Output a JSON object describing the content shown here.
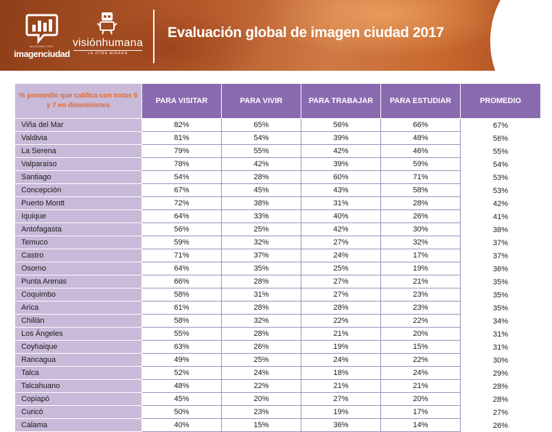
{
  "header": {
    "logo_left_small": "BAROMETRO",
    "logo_left_big": "imagenciudad",
    "logo_right_big": "visiónhumana",
    "logo_right_small": "LA OTRA MIRADA",
    "title": "Evaluación global de imagen ciudad 2017"
  },
  "table": {
    "corner_label": "% promedio que califica con notas 6 y 7 en dimensiones",
    "columns": [
      "PARA VISITAR",
      "PARA VIVIR",
      "PARA TRABAJAR",
      "PARA ESTUDIAR",
      "PROMEDIO"
    ],
    "rows": [
      {
        "city": "Viña del Mar",
        "visitar": "82%",
        "vivir": "65%",
        "trabajar": "56%",
        "estudiar": "66%",
        "promedio": "67%"
      },
      {
        "city": "Valdivia",
        "visitar": "81%",
        "vivir": "54%",
        "trabajar": "39%",
        "estudiar": "48%",
        "promedio": "56%"
      },
      {
        "city": "La Serena",
        "visitar": "79%",
        "vivir": "55%",
        "trabajar": "42%",
        "estudiar": "46%",
        "promedio": "55%"
      },
      {
        "city": "Valparaíso",
        "visitar": "78%",
        "vivir": "42%",
        "trabajar": "39%",
        "estudiar": "59%",
        "promedio": "54%"
      },
      {
        "city": "Santiago",
        "visitar": "54%",
        "vivir": "28%",
        "trabajar": "60%",
        "estudiar": "71%",
        "promedio": "53%"
      },
      {
        "city": "Concepción",
        "visitar": "67%",
        "vivir": "45%",
        "trabajar": "43%",
        "estudiar": "58%",
        "promedio": "53%"
      },
      {
        "city": "Puerto Montt",
        "visitar": "72%",
        "vivir": "38%",
        "trabajar": "31%",
        "estudiar": "28%",
        "promedio": "42%"
      },
      {
        "city": "Iquique",
        "visitar": "64%",
        "vivir": "33%",
        "trabajar": "40%",
        "estudiar": "26%",
        "promedio": "41%"
      },
      {
        "city": "Antofagasta",
        "visitar": "56%",
        "vivir": "25%",
        "trabajar": "42%",
        "estudiar": "30%",
        "promedio": "38%"
      },
      {
        "city": "Temuco",
        "visitar": "59%",
        "vivir": "32%",
        "trabajar": "27%",
        "estudiar": "32%",
        "promedio": "37%"
      },
      {
        "city": "Castro",
        "visitar": "71%",
        "vivir": "37%",
        "trabajar": "24%",
        "estudiar": "17%",
        "promedio": "37%"
      },
      {
        "city": "Osorno",
        "visitar": "64%",
        "vivir": "35%",
        "trabajar": "25%",
        "estudiar": "19%",
        "promedio": "36%"
      },
      {
        "city": "Punta Arenas",
        "visitar": "66%",
        "vivir": "28%",
        "trabajar": "27%",
        "estudiar": "21%",
        "promedio": "35%"
      },
      {
        "city": "Coquimbo",
        "visitar": "58%",
        "vivir": "31%",
        "trabajar": "27%",
        "estudiar": "23%",
        "promedio": "35%"
      },
      {
        "city": "Arica",
        "visitar": "61%",
        "vivir": "28%",
        "trabajar": "28%",
        "estudiar": "23%",
        "promedio": "35%"
      },
      {
        "city": "Chillán",
        "visitar": "58%",
        "vivir": "32%",
        "trabajar": "22%",
        "estudiar": "22%",
        "promedio": "34%"
      },
      {
        "city": "Los Ángeles",
        "visitar": "55%",
        "vivir": "28%",
        "trabajar": "21%",
        "estudiar": "20%",
        "promedio": "31%"
      },
      {
        "city": "Coyhaique",
        "visitar": "63%",
        "vivir": "26%",
        "trabajar": "19%",
        "estudiar": "15%",
        "promedio": "31%"
      },
      {
        "city": "Rancagua",
        "visitar": "49%",
        "vivir": "25%",
        "trabajar": "24%",
        "estudiar": "22%",
        "promedio": "30%"
      },
      {
        "city": "Talca",
        "visitar": "52%",
        "vivir": "24%",
        "trabajar": "18%",
        "estudiar": "24%",
        "promedio": "29%"
      },
      {
        "city": "Talcahuano",
        "visitar": "48%",
        "vivir": "22%",
        "trabajar": "21%",
        "estudiar": "21%",
        "promedio": "28%"
      },
      {
        "city": "Copiapó",
        "visitar": "45%",
        "vivir": "20%",
        "trabajar": "27%",
        "estudiar": "20%",
        "promedio": "28%"
      },
      {
        "city": "Curicó",
        "visitar": "50%",
        "vivir": "23%",
        "trabajar": "19%",
        "estudiar": "17%",
        "promedio": "27%"
      },
      {
        "city": "Calama",
        "visitar": "40%",
        "vivir": "15%",
        "trabajar": "36%",
        "estudiar": "14%",
        "promedio": "26%"
      }
    ]
  }
}
